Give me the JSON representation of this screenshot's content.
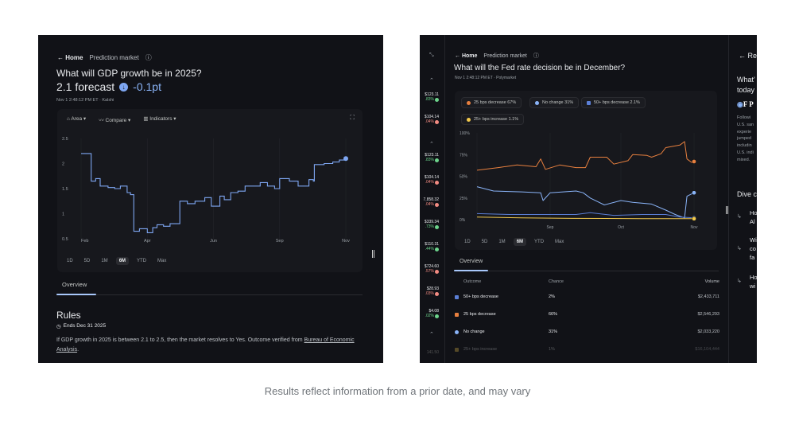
{
  "left": {
    "breadcrumb": {
      "home": "← Home",
      "section": "Prediction market"
    },
    "title": "What will GDP growth be in 2025?",
    "forecast": "2.1 forecast",
    "change": "-0.1pt",
    "meta": "Nov 1 2:48:12 PM ET  ·  Kalshi",
    "toolbar": {
      "area": "Area ▾",
      "compare": "Compare ▾",
      "indicators": "Indicators ▾"
    },
    "ranges": [
      "1D",
      "5D",
      "1M",
      "6M",
      "YTD",
      "Max"
    ],
    "active_range": "6M",
    "tab": "Overview",
    "rules": {
      "heading": "Rules",
      "ends": "Ends Dec 31 2025",
      "text": "If GDP growth in 2025 is between 2.1 to 2.5, then the market resolves to Yes. Outcome verified from ",
      "link": "Bureau of Economic Analysis",
      "tail": "."
    }
  },
  "right": {
    "breadcrumb": {
      "home": "← Home",
      "section": "Prediction market"
    },
    "title": "What will the Fed rate decision be in December?",
    "meta": "Nov 1 2:48:12 PM ET  ·  Polymarket",
    "legend": [
      {
        "label": "25 bps decrease 67%",
        "color": "#e8803f"
      },
      {
        "label": "No change 31%",
        "color": "#8ab4f8"
      },
      {
        "label": "50+ bps decrease 2.1%",
        "color": "#5b7fd6"
      },
      {
        "label": "25+ bps increase 1.1%",
        "color": "#f2c94c"
      }
    ],
    "ranges": [
      "1D",
      "5D",
      "1M",
      "6M",
      "YTD",
      "Max"
    ],
    "active_range": "6M",
    "tab": "Overview",
    "table": {
      "headers": [
        "Outcome",
        "Chance",
        "Volume"
      ],
      "rows": [
        {
          "outcome": "50+ bps decrease",
          "chance": "2%",
          "volume": "$2,433,711",
          "color": "#5b7fd6"
        },
        {
          "outcome": "25 bps decrease",
          "chance": "66%",
          "volume": "$2,546,293",
          "color": "#e8803f"
        },
        {
          "outcome": "No change",
          "chance": "31%",
          "volume": "$2,033,220",
          "color": "#8ab4f8"
        },
        {
          "outcome": "25+ bps increase",
          "chance": "1%",
          "volume": "$16,104,444",
          "color": "#f2c94c"
        }
      ]
    },
    "tickers": [
      {
        "price": "$123.11",
        "change": ".83%",
        "dir": "up"
      },
      {
        "price": "$104.14",
        "change": ".04%",
        "dir": "down"
      },
      {
        "price": "$123.11",
        "change": ".83%",
        "dir": "up"
      },
      {
        "price": "$104.14",
        "change": ".04%",
        "dir": "down"
      },
      {
        "price": "7,858.32",
        "change": ".04%",
        "dir": "down"
      },
      {
        "price": "$339.34",
        "change": ".73%",
        "dir": "up"
      },
      {
        "price": "$110.31",
        "change": ".44%",
        "dir": "up"
      },
      {
        "price": "$724.60",
        "change": ".57%",
        "dir": "down"
      },
      {
        "price": "$28.93",
        "change": ".03%",
        "dir": "down"
      },
      {
        "price": "$4.08",
        "change": ".02%",
        "dir": "up"
      }
    ],
    "ticker_faded": "141.50",
    "side": {
      "back": "← Re",
      "heading1": "What'",
      "heading2": "today",
      "logo": "F P",
      "lines": [
        "Followi",
        "U.S. san",
        "experie",
        "jumped",
        "includin",
        "U.S. indi",
        "mixed."
      ],
      "dive": "Dive c",
      "items": [
        [
          "Ho",
          "Al"
        ],
        [
          "Wi",
          "co",
          "fa"
        ],
        [
          "Ho",
          "wi"
        ]
      ]
    }
  },
  "caption": "Results reflect information from a prior date, and may vary",
  "chart_data": [
    {
      "type": "line",
      "ylim": [
        0.5,
        2.5
      ],
      "yticks": [
        "2.5",
        "2",
        "1.5",
        "1",
        "0.5"
      ],
      "xticks": [
        "Feb",
        "Apr",
        "Jun",
        "Sep",
        "Nov"
      ],
      "grid": true,
      "series": [
        {
          "color": "#7ea6f2",
          "points": [
            [
              "2025-02-01",
              2.2
            ],
            [
              "2025-02-09",
              2.2
            ],
            [
              "2025-02-10",
              1.65
            ],
            [
              "2025-02-14",
              1.7
            ],
            [
              "2025-02-18",
              1.55
            ],
            [
              "2025-02-25",
              1.52
            ],
            [
              "2025-03-03",
              1.5
            ],
            [
              "2025-03-08",
              1.55
            ],
            [
              "2025-03-14",
              1.42
            ],
            [
              "2025-03-17",
              1.38
            ],
            [
              "2025-03-20",
              0.65
            ],
            [
              "2025-03-25",
              0.7
            ],
            [
              "2025-04-01",
              0.62
            ],
            [
              "2025-04-06",
              0.72
            ],
            [
              "2025-04-10",
              0.78
            ],
            [
              "2025-04-16",
              0.75
            ],
            [
              "2025-04-22",
              0.8
            ],
            [
              "2025-04-27",
              0.8
            ],
            [
              "2025-05-01",
              1.25
            ],
            [
              "2025-05-08",
              1.2
            ],
            [
              "2025-05-15",
              1.25
            ],
            [
              "2025-05-24",
              1.32
            ],
            [
              "2025-05-30",
              1.15
            ],
            [
              "2025-06-05",
              1.15
            ],
            [
              "2025-06-10",
              1.35
            ],
            [
              "2025-06-16",
              1.28
            ],
            [
              "2025-06-25",
              1.42
            ],
            [
              "2025-07-05",
              1.45
            ],
            [
              "2025-07-15",
              1.55
            ],
            [
              "2025-07-25",
              1.55
            ],
            [
              "2025-08-05",
              1.62
            ],
            [
              "2025-08-15",
              1.55
            ],
            [
              "2025-08-25",
              1.5
            ],
            [
              "2025-09-01",
              1.7
            ],
            [
              "2025-09-10",
              1.65
            ],
            [
              "2025-09-18",
              1.55
            ],
            [
              "2025-09-28",
              1.68
            ],
            [
              "2025-10-02",
              1.65
            ],
            [
              "2025-10-03",
              1.98
            ],
            [
              "2025-10-12",
              2.0
            ],
            [
              "2025-10-20",
              2.03
            ],
            [
              "2025-10-26",
              2.07
            ],
            [
              "2025-11-01",
              2.1
            ]
          ]
        }
      ]
    },
    {
      "type": "line",
      "ylim": [
        0,
        100
      ],
      "yticks": [
        "100%",
        "75%",
        "50%",
        "25%",
        "0%"
      ],
      "xticks": [
        "Sep",
        "Oct",
        "Nov"
      ],
      "grid": true,
      "series": [
        {
          "name": "25 bps decrease",
          "color": "#e8803f",
          "points": [
            [
              "2025-08-01",
              57
            ],
            [
              "2025-08-10",
              60
            ],
            [
              "2025-08-18",
              63
            ],
            [
              "2025-08-26",
              61
            ],
            [
              "2025-08-28",
              70
            ],
            [
              "2025-08-30",
              58
            ],
            [
              "2025-09-05",
              63
            ],
            [
              "2025-09-12",
              60
            ],
            [
              "2025-09-16",
              60
            ],
            [
              "2025-09-18",
              72
            ],
            [
              "2025-09-25",
              72
            ],
            [
              "2025-09-28",
              64
            ],
            [
              "2025-10-04",
              68
            ],
            [
              "2025-10-06",
              75
            ],
            [
              "2025-10-12",
              74
            ],
            [
              "2025-10-14",
              72
            ],
            [
              "2025-10-18",
              76
            ],
            [
              "2025-10-20",
              83
            ],
            [
              "2025-10-26",
              86
            ],
            [
              "2025-10-28",
              90
            ],
            [
              "2025-10-29",
              70
            ],
            [
              "2025-10-31",
              66
            ],
            [
              "2025-11-01",
              67
            ]
          ]
        },
        {
          "name": "No change",
          "color": "#8ab4f8",
          "points": [
            [
              "2025-08-01",
              38
            ],
            [
              "2025-08-08",
              33
            ],
            [
              "2025-08-20",
              32
            ],
            [
              "2025-08-28",
              31
            ],
            [
              "2025-08-29",
              22
            ],
            [
              "2025-09-01",
              31
            ],
            [
              "2025-09-12",
              33
            ],
            [
              "2025-09-15",
              31
            ],
            [
              "2025-09-18",
              25
            ],
            [
              "2025-09-24",
              17
            ],
            [
              "2025-10-01",
              22
            ],
            [
              "2025-10-06",
              20
            ],
            [
              "2025-10-14",
              18
            ],
            [
              "2025-10-20",
              11
            ],
            [
              "2025-10-24",
              6
            ],
            [
              "2025-10-28",
              2
            ],
            [
              "2025-10-29",
              27
            ],
            [
              "2025-11-01",
              31
            ]
          ]
        },
        {
          "name": "50+ bps decrease",
          "color": "#5b7fd6",
          "points": [
            [
              "2025-08-01",
              7
            ],
            [
              "2025-08-15",
              6
            ],
            [
              "2025-09-01",
              6
            ],
            [
              "2025-09-12",
              6
            ],
            [
              "2025-09-18",
              8
            ],
            [
              "2025-09-28",
              5
            ],
            [
              "2025-10-10",
              6
            ],
            [
              "2025-10-20",
              6
            ],
            [
              "2025-10-26",
              3
            ],
            [
              "2025-11-01",
              2.1
            ]
          ]
        },
        {
          "name": "25+ bps increase",
          "color": "#f2c94c",
          "points": [
            [
              "2025-08-01",
              3
            ],
            [
              "2025-08-20",
              2
            ],
            [
              "2025-09-10",
              1.5
            ],
            [
              "2025-10-10",
              1.2
            ],
            [
              "2025-11-01",
              1.1
            ]
          ]
        }
      ]
    }
  ]
}
